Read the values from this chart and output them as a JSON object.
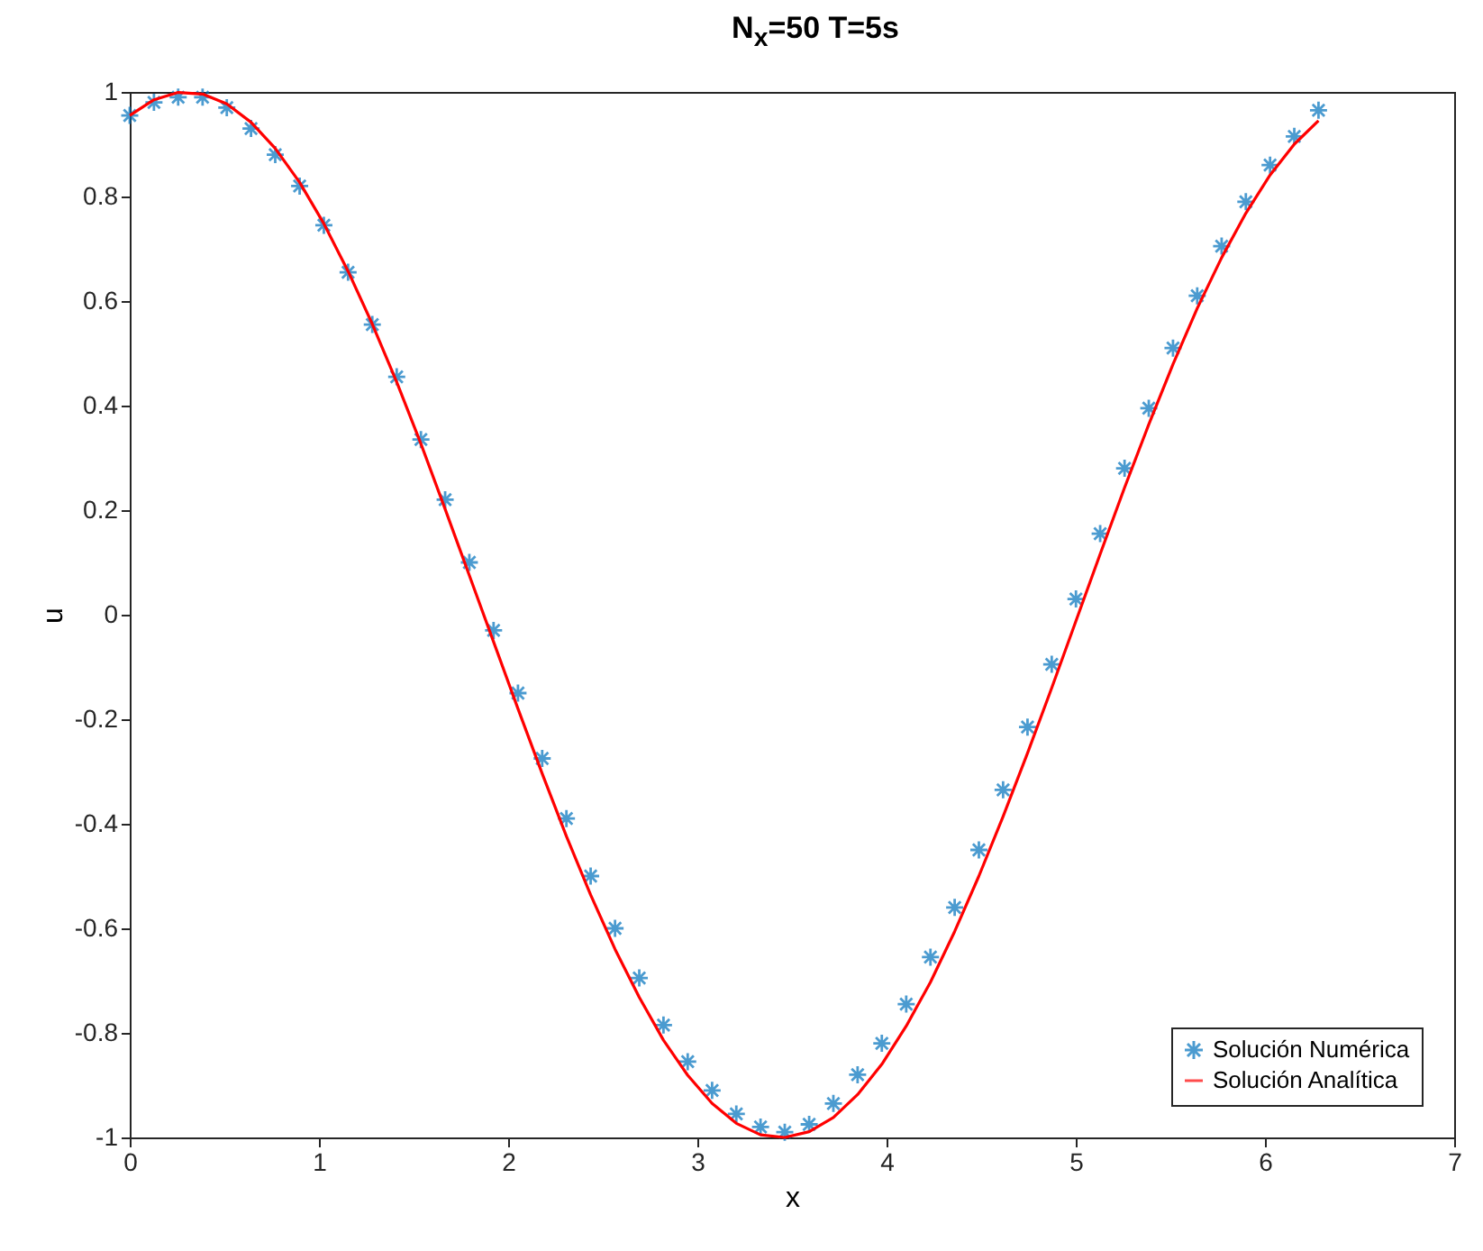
{
  "chart_data": {
    "type": "line",
    "title": "N$_{x}$=50 T=5s",
    "xlabel": "x",
    "ylabel": "u",
    "x": [
      0,
      0.128,
      0.256,
      0.385,
      0.513,
      0.641,
      0.769,
      0.898,
      1.026,
      1.154,
      1.282,
      1.411,
      1.539,
      1.667,
      1.795,
      1.923,
      2.052,
      2.18,
      2.308,
      2.436,
      2.565,
      2.693,
      2.821,
      2.949,
      3.078,
      3.206,
      3.334,
      3.462,
      3.591,
      3.719,
      3.847,
      3.975,
      4.104,
      4.232,
      4.36,
      4.488,
      4.616,
      4.745,
      4.873,
      5.001,
      5.129,
      5.258,
      5.386,
      5.514,
      5.642,
      5.771,
      5.899,
      6.027,
      6.155,
      6.283
    ],
    "series": [
      {
        "name": "Solución Numérica",
        "type": "scatter",
        "marker": "cross",
        "color": "#0072bd",
        "values": [
          0.955,
          0.98,
          0.99,
          0.99,
          0.97,
          0.93,
          0.88,
          0.82,
          0.745,
          0.655,
          0.555,
          0.455,
          0.335,
          0.22,
          0.1,
          -0.03,
          -0.15,
          -0.275,
          -0.39,
          -0.5,
          -0.6,
          -0.695,
          -0.785,
          -0.855,
          -0.91,
          -0.955,
          -0.98,
          -0.99,
          -0.975,
          -0.935,
          -0.88,
          -0.82,
          -0.745,
          -0.655,
          -0.56,
          -0.45,
          -0.335,
          -0.215,
          -0.095,
          0.03,
          0.155,
          0.28,
          0.395,
          0.51,
          0.61,
          0.705,
          0.79,
          0.86,
          0.915,
          0.965
        ]
      },
      {
        "name": "Solución Analítica",
        "type": "line",
        "marker": "none",
        "line_style": "solid",
        "color": "#ff0000",
        "values": [
          0.955,
          0.985,
          0.999,
          0.996,
          0.977,
          0.942,
          0.892,
          0.827,
          0.748,
          0.657,
          0.556,
          0.445,
          0.327,
          0.202,
          0.075,
          -0.052,
          -0.18,
          -0.304,
          -0.424,
          -0.536,
          -0.64,
          -0.732,
          -0.814,
          -0.881,
          -0.935,
          -0.973,
          -0.995,
          -1,
          -0.989,
          -0.962,
          -0.918,
          -0.86,
          -0.787,
          -0.703,
          -0.606,
          -0.5,
          -0.386,
          -0.265,
          -0.14,
          -0.012,
          0.116,
          0.243,
          0.364,
          0.479,
          0.586,
          0.683,
          0.768,
          0.841,
          0.9,
          0.945
        ]
      }
    ],
    "xlim": [
      0,
      7
    ],
    "xticks": [
      0,
      1,
      2,
      3,
      4,
      5,
      6,
      7
    ],
    "ylim": [
      -1,
      1
    ],
    "yticks": [
      {
        "value": -1,
        "label": "-1"
      },
      -0.8,
      -0.6,
      -0.4,
      -0.2,
      {
        "value": 0,
        "label": "0"
      },
      0.2,
      0.4,
      0.6,
      0.8,
      {
        "value": 1,
        "label": "1"
      }
    ],
    "grid": false,
    "legend": "bottom right"
  }
}
